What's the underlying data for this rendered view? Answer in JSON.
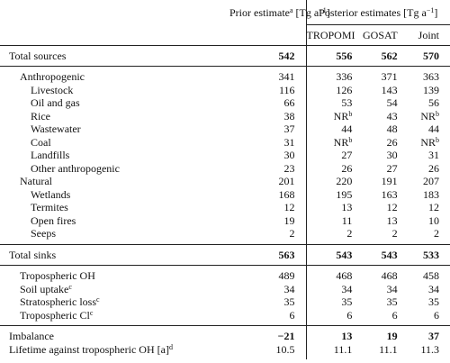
{
  "table": {
    "header": {
      "prior": [
        {
          "text": "Prior estimate"
        },
        {
          "text": "a",
          "sup": true
        },
        {
          "text": " [Tg a"
        },
        {
          "text": "−1",
          "sup": true
        },
        {
          "text": "]"
        }
      ],
      "posterior": [
        {
          "text": "Posterior estimates [Tg a"
        },
        {
          "text": "−1",
          "sup": true
        },
        {
          "text": "]"
        }
      ],
      "columns": [
        "TROPOMI",
        "GOSAT",
        "Joint"
      ]
    },
    "sections": [
      {
        "rows": [
          {
            "label": "Total sources",
            "indent": 0,
            "bold_values": true,
            "prior": 542,
            "posterior": [
              556,
              562,
              570
            ]
          }
        ]
      },
      {
        "rows": [
          {
            "label": "Anthropogenic",
            "indent": 1,
            "prior": 341,
            "posterior": [
              336,
              371,
              363
            ]
          },
          {
            "label": "Livestock",
            "indent": 2,
            "prior": 116,
            "posterior": [
              126,
              143,
              139
            ]
          },
          {
            "label": "Oil and gas",
            "indent": 2,
            "prior": 66,
            "posterior": [
              53,
              54,
              56
            ]
          },
          {
            "label": "Rice",
            "indent": 2,
            "prior": 38,
            "posterior": [
              {
                "text": "NR",
                "sup": "b"
              },
              43,
              {
                "text": "NR",
                "sup": "b"
              }
            ]
          },
          {
            "label": "Wastewater",
            "indent": 2,
            "prior": 37,
            "posterior": [
              44,
              48,
              44
            ]
          },
          {
            "label": "Coal",
            "indent": 2,
            "prior": 31,
            "posterior": [
              {
                "text": "NR",
                "sup": "b"
              },
              26,
              {
                "text": "NR",
                "sup": "b"
              }
            ]
          },
          {
            "label": "Landfills",
            "indent": 2,
            "prior": 30,
            "posterior": [
              27,
              30,
              31
            ]
          },
          {
            "label": "Other anthropogenic",
            "indent": 2,
            "prior": 23,
            "posterior": [
              26,
              27,
              26
            ]
          },
          {
            "label": "Natural",
            "indent": 1,
            "prior": 201,
            "posterior": [
              220,
              191,
              207
            ]
          },
          {
            "label": "Wetlands",
            "indent": 2,
            "prior": 168,
            "posterior": [
              195,
              163,
              183
            ]
          },
          {
            "label": "Termites",
            "indent": 2,
            "prior": 12,
            "posterior": [
              13,
              12,
              12
            ]
          },
          {
            "label": "Open fires",
            "indent": 2,
            "prior": 19,
            "posterior": [
              11,
              13,
              10
            ]
          },
          {
            "label": "Seeps",
            "indent": 2,
            "prior": 2,
            "posterior": [
              2,
              2,
              2
            ]
          }
        ]
      },
      {
        "rows": [
          {
            "label": "Total sinks",
            "indent": 0,
            "bold_values": true,
            "prior": 563,
            "posterior": [
              543,
              543,
              533
            ]
          }
        ]
      },
      {
        "rows": [
          {
            "label": "Tropospheric OH",
            "indent": 1,
            "prior": 489,
            "posterior": [
              468,
              468,
              458
            ]
          },
          {
            "label": "Soil uptake",
            "label_sup": "c",
            "indent": 1,
            "prior": 34,
            "posterior": [
              34,
              34,
              34
            ]
          },
          {
            "label": "Stratospheric loss",
            "label_sup": "c",
            "indent": 1,
            "prior": 35,
            "posterior": [
              35,
              35,
              35
            ]
          },
          {
            "label": "Tropospheric Cl",
            "label_sup": "c",
            "indent": 1,
            "prior": 6,
            "posterior": [
              6,
              6,
              6
            ]
          }
        ]
      },
      {
        "rows": [
          {
            "label": "Imbalance",
            "indent": 0,
            "bold_values": true,
            "prior": "−21",
            "posterior": [
              13,
              19,
              37
            ]
          },
          {
            "label": "Lifetime against tropospheric OH [a]",
            "label_sup": "d",
            "indent": 0,
            "prior": 10.5,
            "posterior": [
              11.1,
              11.1,
              11.3
            ]
          }
        ]
      }
    ]
  }
}
